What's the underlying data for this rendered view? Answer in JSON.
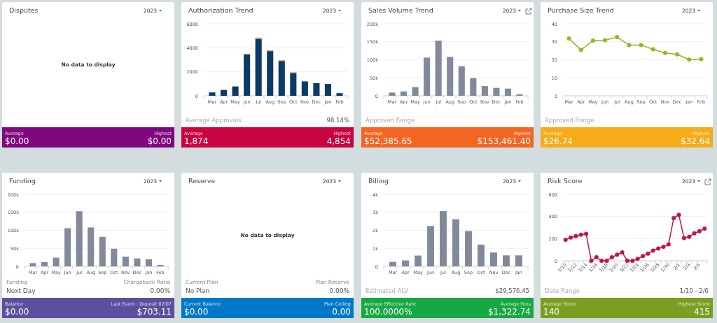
{
  "chart_data": [
    {
      "type": "other",
      "title": "Disputes",
      "annotations": [
        "2023",
        "No data to display",
        "Average",
        "$0.00",
        "Highest",
        "$0.00"
      ]
    },
    {
      "type": "bar",
      "title": "Authorization Trend",
      "stacked": true,
      "grid": "y",
      "categories": [
        "Mar",
        "Apr",
        "May",
        "Jun",
        "Jul",
        "Aug",
        "Sep",
        "Oct",
        "Nov",
        "Dec",
        "Jan",
        "Feb"
      ],
      "series": [
        {
          "color": "#0b3a66",
          "values": [
            280,
            490,
            780,
            3450,
            4740,
            3720,
            2900,
            1900,
            1200,
            1050,
            980,
            220
          ]
        },
        {
          "color": "#f08a5d",
          "values": [
            null,
            null,
            null,
            50,
            110,
            70,
            60,
            60,
            null,
            null,
            null,
            null
          ]
        }
      ],
      "ylim": [
        0,
        6000
      ],
      "yticks": [
        0,
        2000,
        4000,
        6000
      ],
      "annotations": [
        "2023",
        "Average Approvals",
        "98.14%",
        "Average",
        "1,874",
        "Highest",
        "4,854"
      ]
    },
    {
      "type": "bar",
      "title": "Sales Volume Trend",
      "grid": "y",
      "categories": [
        "Mar",
        "Apr",
        "May",
        "Jun",
        "Jul",
        "Aug",
        "Sep",
        "Oct",
        "Nov",
        "Dec",
        "Jan",
        "Feb"
      ],
      "series": [
        {
          "color": "#808a9a",
          "values": [
            9000,
            12000,
            24000,
            106000,
            153000,
            108000,
            82000,
            49000,
            27000,
            22000,
            20000,
            4000
          ]
        }
      ],
      "ylim": [
        0,
        200000
      ],
      "yticks": [
        0,
        {
          "value": 50000,
          "label": "50k"
        },
        {
          "value": 100000,
          "label": "100k"
        },
        {
          "value": 150000,
          "label": "150k"
        },
        {
          "value": 200000,
          "label": "200k"
        }
      ],
      "annotations": [
        "2023",
        "Approved Range",
        "Average",
        "$52,385.65",
        "Highest",
        "$153,461.40"
      ]
    },
    {
      "type": "line",
      "title": "Purchase Size Trend",
      "grid": "y",
      "marker": "circle",
      "categories": [
        "Mar",
        "Apr",
        "May",
        "Jun",
        "Jul",
        "Aug",
        "Sep",
        "Oct",
        "Nov",
        "Dec",
        "Jan",
        "Feb"
      ],
      "series": [
        {
          "color": "#8cbd1d",
          "values": [
            31.8,
            25.5,
            30.7,
            30.9,
            32.6,
            28.2,
            28.2,
            25.8,
            23.8,
            23.0,
            20.1,
            20.4
          ]
        }
      ],
      "ylim": [
        0,
        40
      ],
      "yticks": [
        0,
        10,
        20,
        30,
        40
      ],
      "annotations": [
        "2023",
        "Approved Range",
        "Average",
        "$26.74",
        "Highest",
        "$32.64"
      ]
    },
    {
      "type": "bar",
      "title": "Funding",
      "grid": "y",
      "categories": [
        "Mar",
        "Apr",
        "May",
        "Jun",
        "Jul",
        "Aug",
        "Sep",
        "Oct",
        "Nov",
        "Dec",
        "Jan",
        "Feb"
      ],
      "series": [
        {
          "color": "#808a9a",
          "values": [
            9000,
            12000,
            24000,
            106000,
            153000,
            108000,
            82000,
            49000,
            27000,
            22000,
            20000,
            4000
          ]
        }
      ],
      "ylim": [
        0,
        200000
      ],
      "yticks": [
        0,
        {
          "value": 50000,
          "label": "50k"
        },
        {
          "value": 100000,
          "label": "100k"
        },
        {
          "value": 150000,
          "label": "150k"
        },
        {
          "value": 200000,
          "label": "200k"
        }
      ],
      "annotations": [
        "2023",
        "Funding",
        "Next Day",
        "Chargeback Ratio",
        "0.00%",
        "Balance",
        "$0.00",
        "Last Event : Deposit 02/07",
        "$703.11"
      ]
    },
    {
      "type": "other",
      "title": "Reserve",
      "annotations": [
        "2023",
        "No data to display",
        "Current Plan",
        "No Plan",
        "Plan Reserve",
        "0.00%",
        "Current Balance",
        "$0.00",
        "Plan Ceiling",
        "0.00"
      ]
    },
    {
      "type": "bar",
      "title": "Billing",
      "grid": "y",
      "categories": [
        "Mar",
        "Apr",
        "May",
        "Jun",
        "Jul",
        "Aug",
        "Sep",
        "Oct",
        "Nov",
        "Dec",
        "Jan"
      ],
      "series": [
        {
          "color": "#808a9a",
          "values": [
            250,
            330,
            600,
            2240,
            3070,
            2620,
            1960,
            1210,
            770,
            610,
            610
          ]
        }
      ],
      "ylim": [
        0,
        4000
      ],
      "yticks": [
        0,
        {
          "value": 1000,
          "label": "1k"
        },
        {
          "value": 2000,
          "label": "2k"
        },
        {
          "value": 3000,
          "label": "3k"
        },
        {
          "value": 4000,
          "label": "4k"
        }
      ],
      "annotations": [
        "2023",
        "Estimated ALV",
        "$29,576.45",
        "Average Effective Rate",
        "100.0000%",
        "Average Fees",
        "$1,322.74"
      ]
    },
    {
      "type": "line",
      "title": "Risk Score",
      "grid": "y",
      "marker": "circle",
      "categories": [
        "1/10",
        null,
        "1/12",
        null,
        "1/14",
        null,
        "1/16",
        null,
        "1/18",
        null,
        "1/20",
        null,
        "1/22",
        null,
        "1/24",
        null,
        "1/26",
        null,
        "1/28",
        null,
        "1/30",
        null,
        "2/1",
        null,
        "2/3",
        null,
        "2/5",
        null
      ],
      "series": [
        {
          "color": "#c2134f",
          "values": [
            189,
            210,
            223,
            235,
            243,
            0,
            31,
            0,
            0,
            31,
            55,
            76,
            0,
            0,
            17,
            42,
            65,
            92,
            111,
            126,
            149,
            386,
            415,
            206,
            216,
            248,
            267,
            290
          ]
        }
      ],
      "ylim": [
        0,
        600
      ],
      "yticks": [
        0,
        200,
        400,
        600
      ],
      "annotations": [
        "2023",
        "Date Range",
        "1/10 - 2/6",
        "Average Score",
        "140",
        "Highest Score",
        "415"
      ]
    }
  ]
}
